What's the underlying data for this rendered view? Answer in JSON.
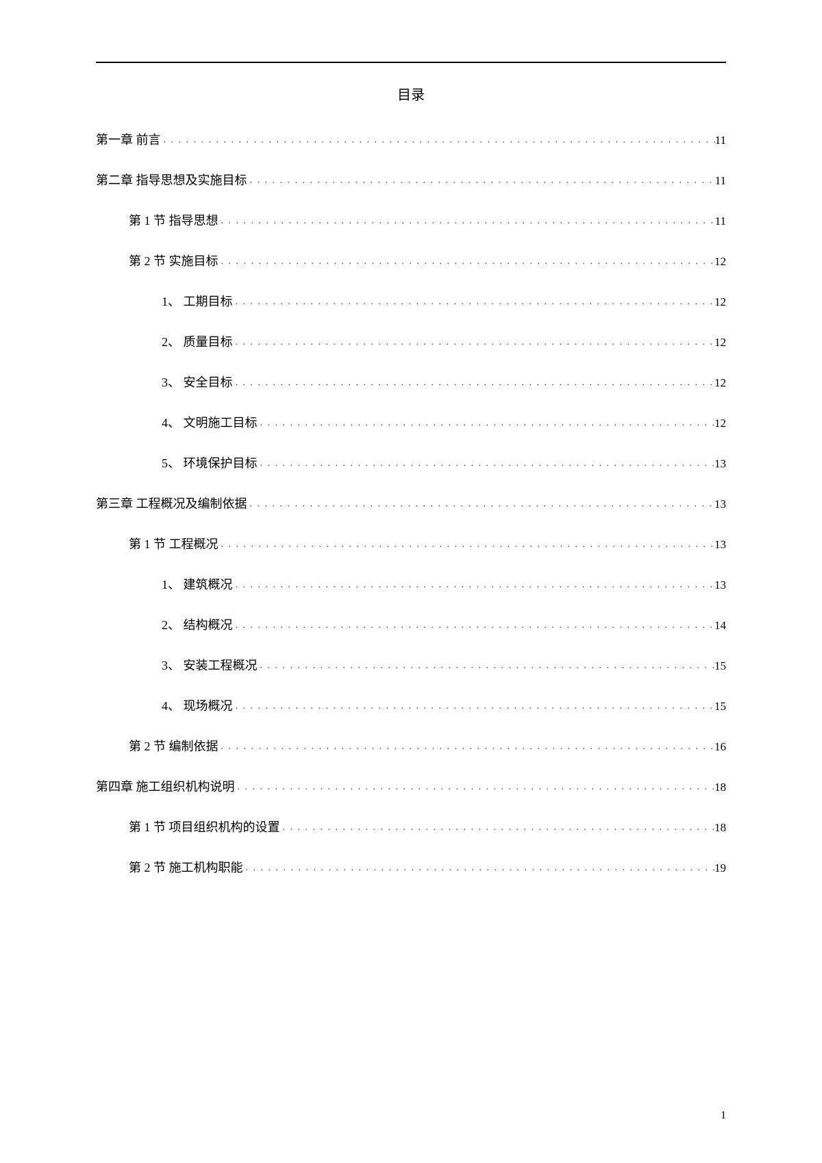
{
  "title": "目录",
  "page_number": "1",
  "entries": [
    {
      "level": 1,
      "label": "第一章 前言",
      "page": "11"
    },
    {
      "level": 1,
      "label": "第二章 指导思想及实施目标",
      "page": "11"
    },
    {
      "level": 2,
      "label": "第 1 节 指导思想",
      "page": "11"
    },
    {
      "level": 2,
      "label": "第 2 节 实施目标",
      "page": "12"
    },
    {
      "level": 3,
      "label": "1、 工期目标",
      "page": "12"
    },
    {
      "level": 3,
      "label": "2、 质量目标",
      "page": "12"
    },
    {
      "level": 3,
      "label": "3、 安全目标",
      "page": "12"
    },
    {
      "level": 3,
      "label": "4、 文明施工目标",
      "page": "12"
    },
    {
      "level": 3,
      "label": "5、 环境保护目标",
      "page": "13"
    },
    {
      "level": 1,
      "label": "第三章 工程概况及编制依据",
      "page": "13"
    },
    {
      "level": 2,
      "label": "第 1 节 工程概况",
      "page": "13"
    },
    {
      "level": 3,
      "label": "1、 建筑概况",
      "page": "13"
    },
    {
      "level": 3,
      "label": "2、 结构概况",
      "page": "14"
    },
    {
      "level": 3,
      "label": "3、 安装工程概况",
      "page": "15"
    },
    {
      "level": 3,
      "label": "4、 现场概况",
      "page": "15"
    },
    {
      "level": 2,
      "label": "第 2 节 编制依据",
      "page": "16"
    },
    {
      "level": 1,
      "label": "第四章 施工组织机构说明",
      "page": "18"
    },
    {
      "level": 2,
      "label": "第 1 节 项目组织机构的设置",
      "page": "18"
    },
    {
      "level": 2,
      "label": "第 2 节 施工机构职能",
      "page": "19"
    }
  ]
}
